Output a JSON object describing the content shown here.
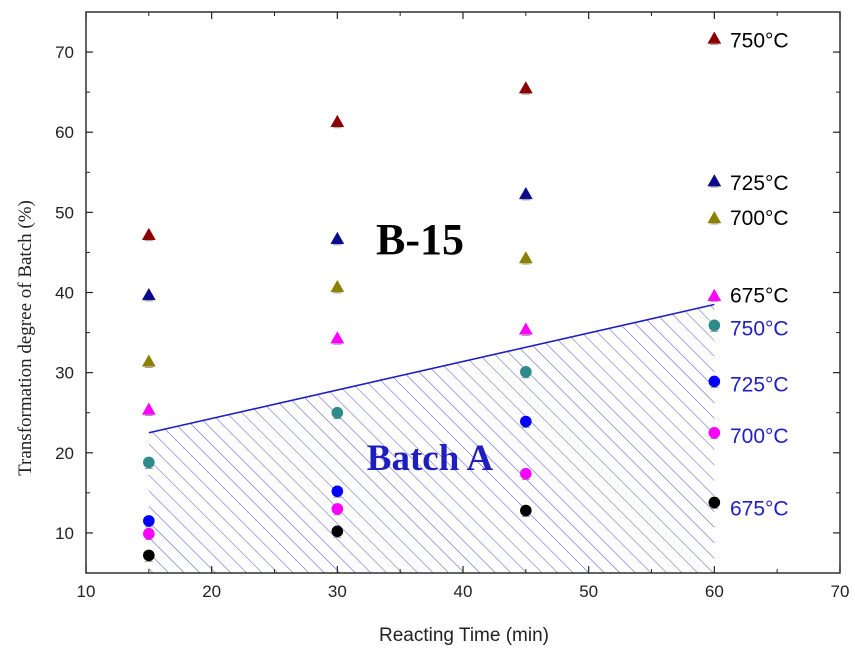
{
  "chart_data": {
    "type": "scatter",
    "xlabel": "Reacting Time (min)",
    "ylabel": "Transformation degree of Batch (%)",
    "xlim": [
      10,
      70
    ],
    "ylim": [
      5,
      75
    ],
    "xticks": [
      10,
      20,
      30,
      40,
      50,
      60,
      70
    ],
    "yticks": [
      10,
      20,
      30,
      40,
      50,
      60,
      70
    ],
    "xtick_labels": [
      "10",
      "20",
      "30",
      "40",
      "50",
      "60",
      "70"
    ],
    "ytick_labels": [
      "10",
      "20",
      "30",
      "40",
      "50",
      "60",
      "70"
    ],
    "annotations": [
      {
        "text": "B-15",
        "color": "#000000"
      },
      {
        "text": "Batch A",
        "color": "#1f1fbf"
      }
    ],
    "region_boundary": {
      "x": [
        15,
        60
      ],
      "y": [
        22.5,
        38.5
      ]
    },
    "series": [
      {
        "name": "750°C",
        "group": "B-15",
        "marker": "triangle",
        "color": "#8b0000",
        "label_color": "#000000",
        "x": [
          15,
          30,
          45,
          60
        ],
        "y": [
          47.2,
          61.3,
          65.5,
          71.7
        ]
      },
      {
        "name": "725°C",
        "group": "B-15",
        "marker": "triangle",
        "color": "#0a0a8a",
        "label_color": "#000000",
        "x": [
          15,
          30,
          45,
          60
        ],
        "y": [
          39.7,
          46.7,
          52.3,
          53.9
        ]
      },
      {
        "name": "700°C",
        "group": "B-15",
        "marker": "triangle",
        "color": "#8c8000",
        "label_color": "#000000",
        "x": [
          15,
          30,
          45,
          60
        ],
        "y": [
          31.4,
          40.7,
          44.3,
          49.3
        ]
      },
      {
        "name": "675°C",
        "group": "B-15",
        "marker": "triangle",
        "color": "#ff00ff",
        "label_color": "#000000",
        "x": [
          15,
          30,
          45,
          60
        ],
        "y": [
          25.4,
          34.3,
          35.4,
          39.6
        ]
      },
      {
        "name": "750°C",
        "group": "Batch A",
        "marker": "circle",
        "color": "#2e8b8b",
        "label_color": "#1f1fbf",
        "x": [
          15,
          30,
          45,
          60
        ],
        "y": [
          18.8,
          25.0,
          30.1,
          35.9
        ]
      },
      {
        "name": "725°C",
        "group": "Batch A",
        "marker": "circle",
        "color": "#0000ff",
        "label_color": "#1f1fbf",
        "x": [
          15,
          30,
          45,
          60
        ],
        "y": [
          11.5,
          15.2,
          23.9,
          28.9
        ]
      },
      {
        "name": "700°C",
        "group": "Batch A",
        "marker": "circle",
        "color": "#ff00ff",
        "label_color": "#1f1fbf",
        "x": [
          15,
          30,
          45,
          60
        ],
        "y": [
          9.9,
          13.0,
          17.4,
          22.5
        ]
      },
      {
        "name": "675°C",
        "group": "Batch A",
        "marker": "circle",
        "color": "#000000",
        "label_color": "#1f1fbf",
        "x": [
          15,
          30,
          45,
          60
        ],
        "y": [
          7.2,
          10.2,
          12.8,
          13.8
        ]
      }
    ]
  }
}
